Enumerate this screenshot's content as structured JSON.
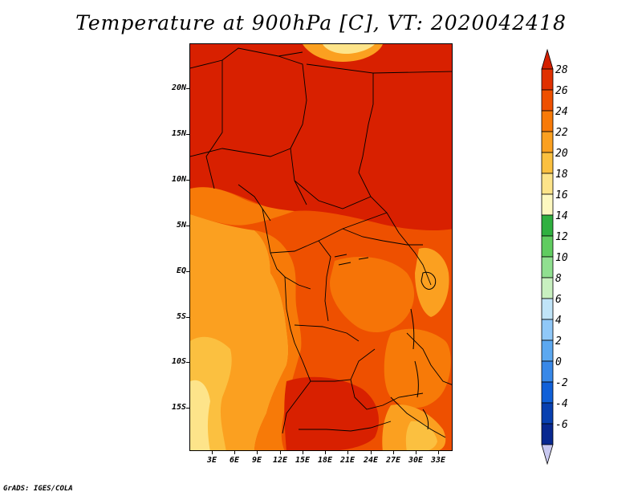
{
  "title": "Temperature at 900hPa [C], VT: 2020042418",
  "credit": "GrADS: IGES/COLA",
  "y_axis_labels": [
    "20N",
    "15N",
    "10N",
    "5N",
    "EQ",
    "5S",
    "10S",
    "15S"
  ],
  "x_axis_labels": [
    "3E",
    "6E",
    "9E",
    "12E",
    "15E",
    "18E",
    "21E",
    "24E",
    "27E",
    "30E",
    "33E"
  ],
  "colorbar": {
    "labels": [
      "28",
      "26",
      "24",
      "22",
      "20",
      "18",
      "16",
      "14",
      "12",
      "10",
      "8",
      "6",
      "4",
      "2",
      "0",
      "-2",
      "-4",
      "-6"
    ],
    "colors": [
      "#d42000",
      "#e03000",
      "#ee5000",
      "#f77a08",
      "#fba020",
      "#fbc040",
      "#fde48a",
      "#fdf8c0",
      "#30b040",
      "#60cc60",
      "#90e090",
      "#c8f0c0",
      "#c0e4f8",
      "#90c8f8",
      "#5ca8f0",
      "#3888e8",
      "#1060d8",
      "#0840b0",
      "#082890",
      "#c8c8f0"
    ]
  }
}
